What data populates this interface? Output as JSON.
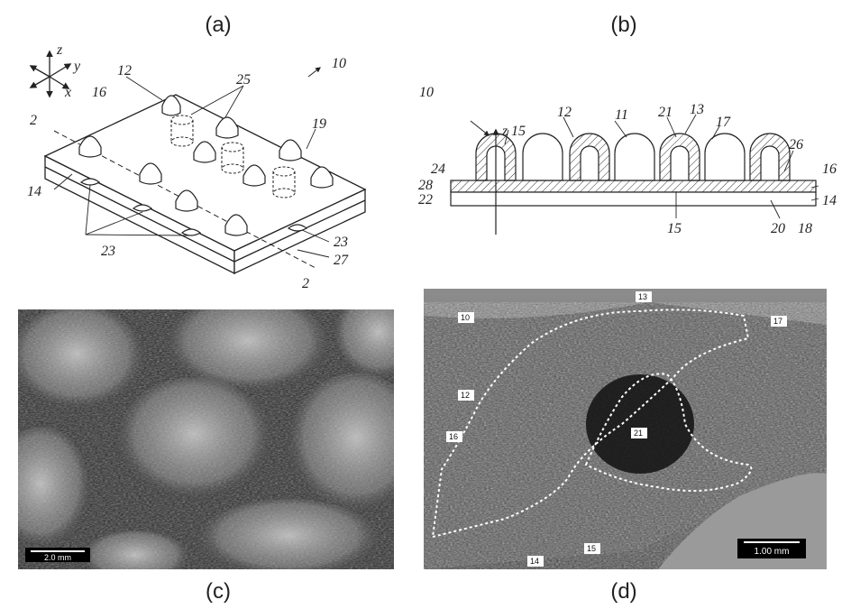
{
  "captions": {
    "a": "(a)",
    "b": "(b)",
    "c": "(c)",
    "d": "(d)"
  },
  "panel_a": {
    "axes": {
      "z": "z",
      "y": "y",
      "x": "x"
    },
    "section_mark": "2",
    "labels": {
      "n10": "10",
      "n12": "12",
      "n16": "16",
      "n25": "25",
      "n19": "19",
      "n14": "14",
      "n23": "23",
      "n27": "27"
    }
  },
  "panel_b": {
    "labels": {
      "n10": "10",
      "z": "z",
      "n15": "15",
      "n12": "12",
      "n11": "11",
      "n21": "21",
      "n13": "13",
      "n17": "17",
      "n26": "26",
      "n16": "16",
      "n24": "24",
      "n28": "28",
      "n22": "22",
      "n14": "14",
      "n15b": "15",
      "n20": "20",
      "n18": "18"
    }
  },
  "panel_c": {
    "scalebar": "2.0 mm"
  },
  "panel_d": {
    "scalebar": "1.00 mm",
    "labels": {
      "n13": "13",
      "n10": "10",
      "n17": "17",
      "n12": "12",
      "n16": "16",
      "n21": "21",
      "n15": "15",
      "n14": "14"
    }
  }
}
